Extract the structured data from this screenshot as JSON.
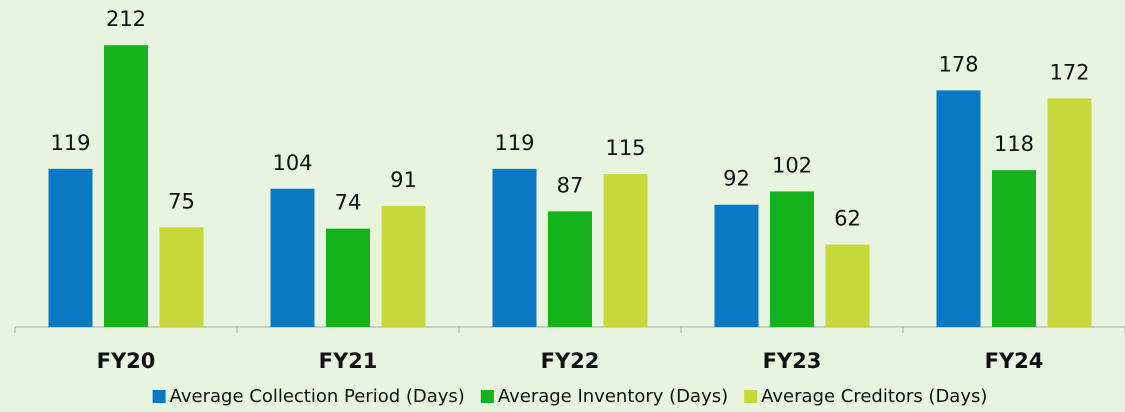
{
  "chart_data": {
    "type": "bar",
    "categories": [
      "FY20",
      "FY21",
      "FY22",
      "FY23",
      "FY24"
    ],
    "series": [
      {
        "name": "Average Collection Period (Days)",
        "color": "#0a78c2",
        "values": [
          119,
          104,
          119,
          92,
          178
        ]
      },
      {
        "name": "Average Inventory (Days)",
        "color": "#14b21b",
        "values": [
          212,
          74,
          87,
          102,
          118
        ]
      },
      {
        "name": "Average Creditors (Days)",
        "color": "#c5d93b",
        "values": [
          75,
          91,
          115,
          62,
          172
        ]
      }
    ],
    "ylim": [
      0,
      240
    ],
    "grid": false,
    "legend": "bottom"
  }
}
